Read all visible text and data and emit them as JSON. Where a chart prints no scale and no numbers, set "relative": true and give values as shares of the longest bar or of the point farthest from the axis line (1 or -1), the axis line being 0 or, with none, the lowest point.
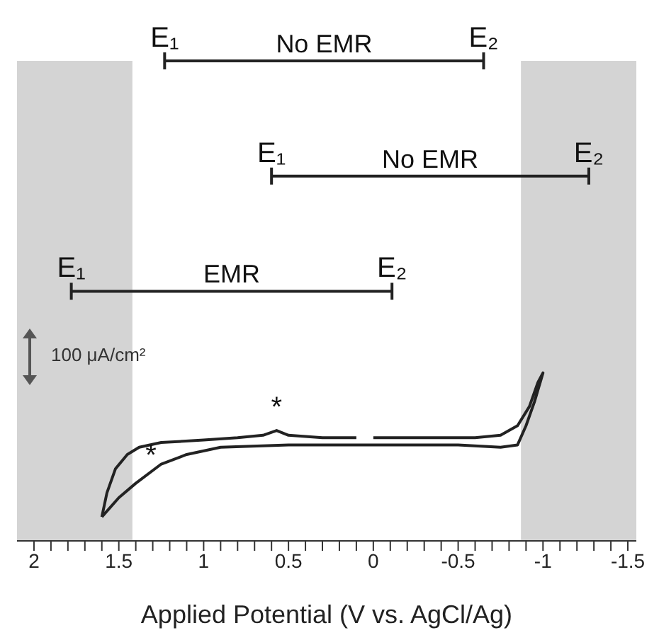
{
  "chart_data": {
    "type": "line",
    "relative": true,
    "xlabel": "Applied Potential (V vs. AgCl/Ag)",
    "xlim": [
      2.1,
      -1.55
    ],
    "xticks": [
      2,
      {
        "value": 1.9,
        "label": null
      },
      {
        "value": 1.8,
        "label": null
      },
      {
        "value": 1.7,
        "label": null
      },
      {
        "value": 1.6,
        "label": null
      },
      1.5,
      {
        "value": 1.4,
        "label": null
      },
      {
        "value": 1.3,
        "label": null
      },
      {
        "value": 1.2,
        "label": null
      },
      {
        "value": 1.1,
        "label": null
      },
      1,
      {
        "value": 0.9,
        "label": null
      },
      {
        "value": 0.8,
        "label": null
      },
      {
        "value": 0.7,
        "label": null
      },
      {
        "value": 0.6,
        "label": null
      },
      0.5,
      {
        "value": 0.4,
        "label": null
      },
      {
        "value": 0.3,
        "label": null
      },
      {
        "value": 0.2,
        "label": null
      },
      {
        "value": 0.1,
        "label": null
      },
      0,
      {
        "value": -0.1,
        "label": null
      },
      {
        "value": -0.2,
        "label": null
      },
      {
        "value": -0.3,
        "label": null
      },
      {
        "value": -0.4,
        "label": null
      },
      -0.5,
      {
        "value": -0.6,
        "label": null
      },
      {
        "value": -0.7,
        "label": null
      },
      {
        "value": -0.8,
        "label": null
      },
      {
        "value": -0.9,
        "label": null
      },
      -1,
      {
        "value": -1.1,
        "label": null
      },
      {
        "value": -1.2,
        "label": null
      },
      {
        "value": -1.3,
        "label": null
      },
      {
        "value": -1.4,
        "label": null
      },
      -1.5
    ],
    "tick_labels": "x",
    "series": [
      {
        "color": "#222222",
        "x": [
          1.6,
          1.57,
          1.52,
          1.45,
          1.38,
          1.25,
          1.0,
          0.8,
          0.65,
          0.57,
          0.5,
          0.3,
          0.1,
          0.05,
          0.0,
          -0.3,
          -0.6,
          -0.75,
          -0.85,
          -0.92,
          -0.97,
          -1.0,
          -0.95,
          -0.9,
          -0.85,
          -0.75,
          -0.5,
          0,
          0.5,
          0.9,
          1.1,
          1.25,
          1.4,
          1.5,
          1.6
        ],
        "values": [
          0.05,
          0.1,
          0.15,
          0.18,
          0.195,
          0.205,
          0.21,
          0.215,
          0.22,
          0.23,
          0.22,
          0.215,
          0.215,
          null,
          0.215,
          0.215,
          0.215,
          0.22,
          0.24,
          0.28,
          0.33,
          0.35,
          0.29,
          0.24,
          0.2,
          0.195,
          0.2,
          0.2,
          0.2,
          0.195,
          0.18,
          0.16,
          0.12,
          0.09,
          0.05
        ]
      },
      {
        "name": "No EMR",
        "color": "#222222",
        "x": [
          1.23,
          -0.65
        ],
        "values": [
          1,
          1
        ]
      },
      {
        "name": "No EMR",
        "color": "#222222",
        "x": [
          0.6,
          -1.27
        ],
        "values": [
          0.76,
          0.76
        ]
      },
      {
        "name": "EMR",
        "color": "#222222",
        "x": [
          1.78,
          -0.11
        ],
        "values": [
          0.52,
          0.52
        ]
      }
    ],
    "bands": [
      {
        "axis": "x",
        "from": 2.1,
        "to": 1.42,
        "color": "#d4d4d4"
      },
      {
        "axis": "x",
        "from": -0.87,
        "to": -1.55,
        "color": "#d4d4d4"
      }
    ],
    "annotations": [
      {
        "text": "E₁",
        "x": 1.23,
        "y": 1
      },
      {
        "text": "E₂",
        "x": -0.65,
        "y": 1
      },
      {
        "text": "E₁",
        "x": 0.6,
        "y": 0.76
      },
      {
        "text": "E₂",
        "x": -1.27,
        "y": 0.76
      },
      {
        "text": "E₁",
        "x": 1.78,
        "y": 0.52
      },
      {
        "text": "E₂",
        "x": -0.11,
        "y": 0.52
      },
      {
        "text": "*",
        "x": 0.57,
        "y": 0.23
      },
      {
        "text": "*",
        "x": 1.31,
        "y": 0.13
      },
      "100 μA/cm²"
    ]
  }
}
